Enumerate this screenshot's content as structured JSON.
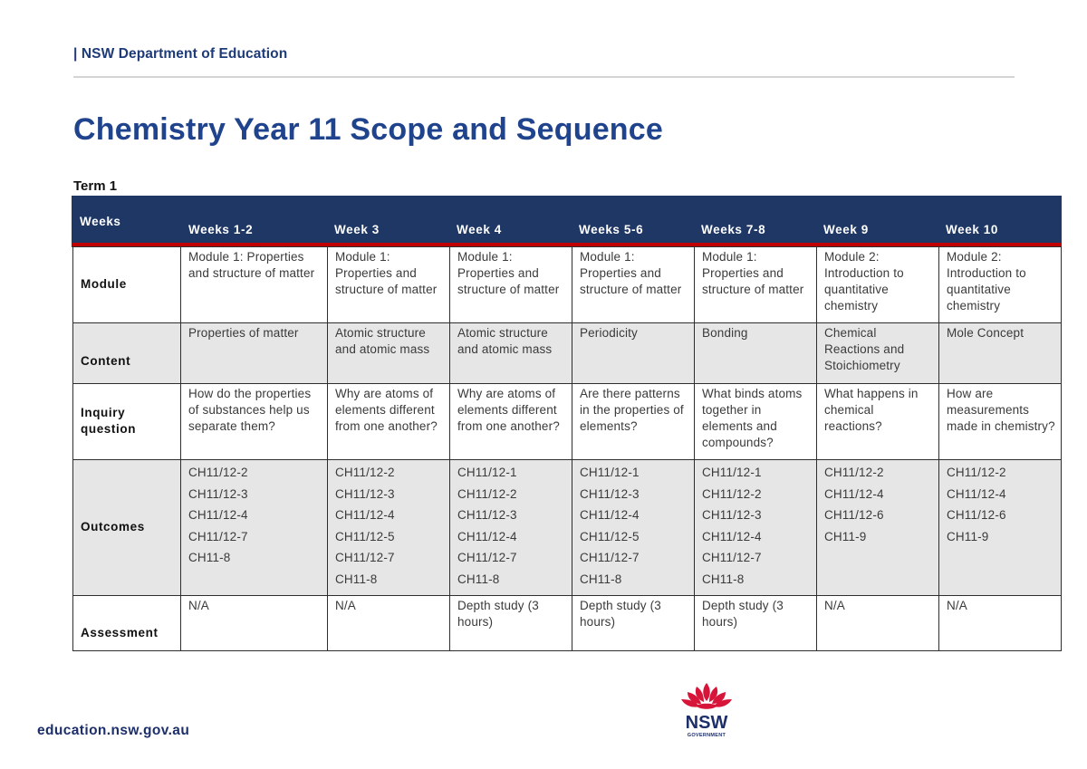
{
  "header": {
    "organisation": "| NSW Department of Education"
  },
  "document": {
    "title": "Chemistry Year 11 Scope and Sequence",
    "term": "Term 1"
  },
  "table": {
    "corner_label": "Weeks",
    "columns": [
      "Weeks 1-2",
      "Week 3",
      "Week 4",
      "Weeks 5-6",
      "Weeks 7-8",
      "Week 9",
      "Week 10"
    ],
    "rows": {
      "module": {
        "label": "Module",
        "cells": [
          "Module 1: Properties and structure of matter",
          "Module 1: Properties and structure of matter",
          "Module 1: Properties and structure of matter",
          "Module 1: Properties and structure of matter",
          "Module 1: Properties and structure of matter",
          "Module 2: Introduction to quantitative chemistry",
          "Module 2: Introduction to quantitative chemistry"
        ]
      },
      "content": {
        "label": "Content",
        "cells": [
          "Properties of matter",
          "Atomic structure and atomic mass",
          "Atomic structure and atomic mass",
          "Periodicity",
          "Bonding",
          "Chemical Reactions and Stoichiometry",
          "Mole Concept"
        ]
      },
      "inquiry": {
        "label": "Inquiry question",
        "cells": [
          "How do the properties of substances help us separate them?",
          "Why are atoms of elements different from one another?",
          "Why are atoms of elements different from one another?",
          "Are there patterns in the properties of elements?",
          "What binds atoms together in elements and compounds?",
          "What happens in chemical reactions?",
          "How are measurements made in chemistry?"
        ]
      },
      "outcomes": {
        "label": "Outcomes",
        "cells": [
          [
            "CH11/12-2",
            "CH11/12-3",
            "CH11/12-4",
            "CH11/12-7",
            "CH11-8"
          ],
          [
            "CH11/12-2",
            "CH11/12-3",
            "CH11/12-4",
            "CH11/12-5",
            "CH11/12-7",
            "CH11-8"
          ],
          [
            "CH11/12-1",
            "CH11/12-2",
            "CH11/12-3",
            "CH11/12-4",
            "CH11/12-7",
            "CH11-8"
          ],
          [
            "CH11/12-1",
            "CH11/12-3",
            "CH11/12-4",
            "CH11/12-5",
            "CH11/12-7",
            "CH11-8"
          ],
          [
            "CH11/12-1",
            "CH11/12-2",
            "CH11/12-3",
            "CH11/12-4",
            "CH11/12-7",
            "CH11-8"
          ],
          [
            "CH11/12-2",
            "CH11/12-4",
            "CH11/12-6",
            "CH11-9"
          ],
          [
            "CH11/12-2",
            "CH11/12-4",
            "CH11/12-6",
            "CH11-9"
          ]
        ]
      },
      "assessment": {
        "label": "Assessment",
        "cells": [
          "N/A",
          "N/A",
          "Depth study (3 hours)",
          "Depth study (3 hours)",
          "Depth study (3 hours)",
          "N/A",
          "N/A"
        ]
      }
    }
  },
  "footer": {
    "url": "education.nsw.gov.au",
    "logo": {
      "icon": "waratah-icon",
      "wordmark": "NSW",
      "subtext": "GOVERNMENT"
    }
  },
  "colors": {
    "brand_navy": "#1f3764",
    "title_blue": "#20438d",
    "accent_red": "#c00000",
    "shaded_row": "#e6e6e6"
  }
}
